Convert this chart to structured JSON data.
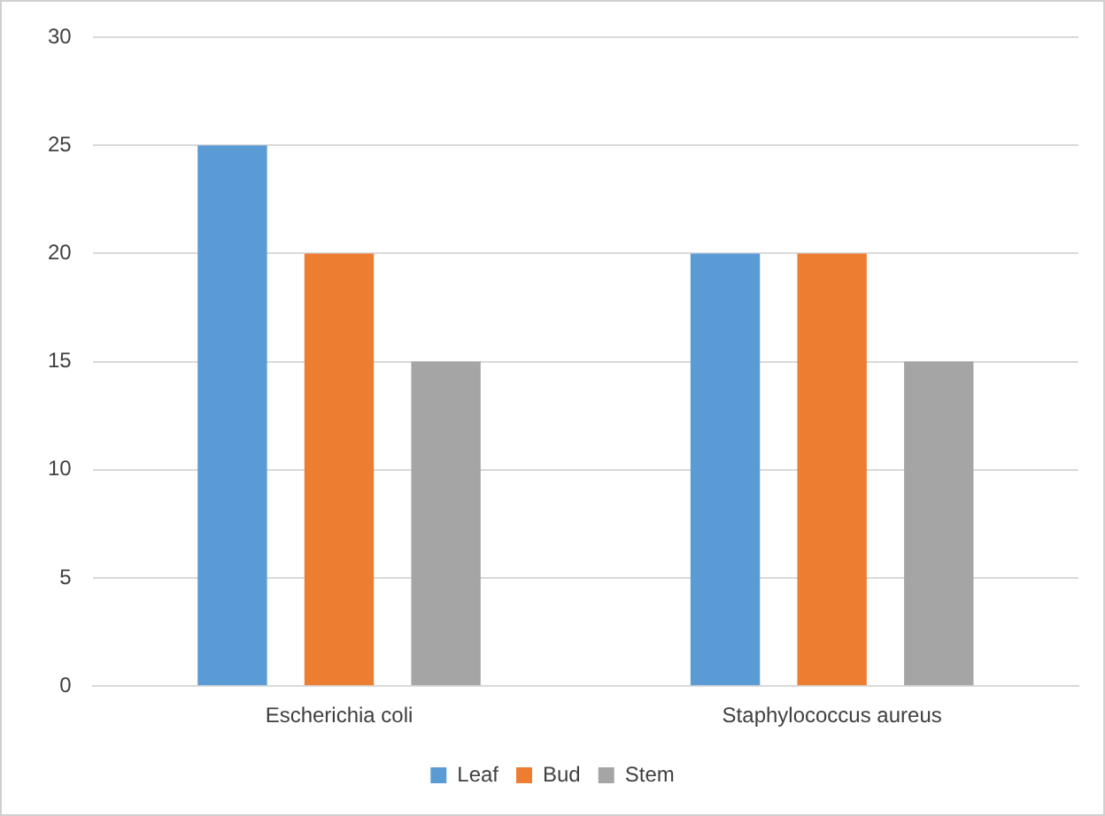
{
  "chart_data": {
    "type": "bar",
    "categories": [
      "Escherichia coli",
      "Staphylococcus aureus"
    ],
    "series": [
      {
        "name": "Leaf",
        "color": "#5b9bd5",
        "values": [
          25,
          20
        ]
      },
      {
        "name": "Bud",
        "color": "#ed7d31",
        "values": [
          20,
          20
        ]
      },
      {
        "name": "Stem",
        "color": "#a5a5a5",
        "values": [
          15,
          15
        ]
      }
    ],
    "ylim": [
      0,
      30
    ],
    "yticks": [
      0,
      5,
      10,
      15,
      20,
      25,
      30
    ],
    "grid": "y",
    "legend": "bottom"
  }
}
